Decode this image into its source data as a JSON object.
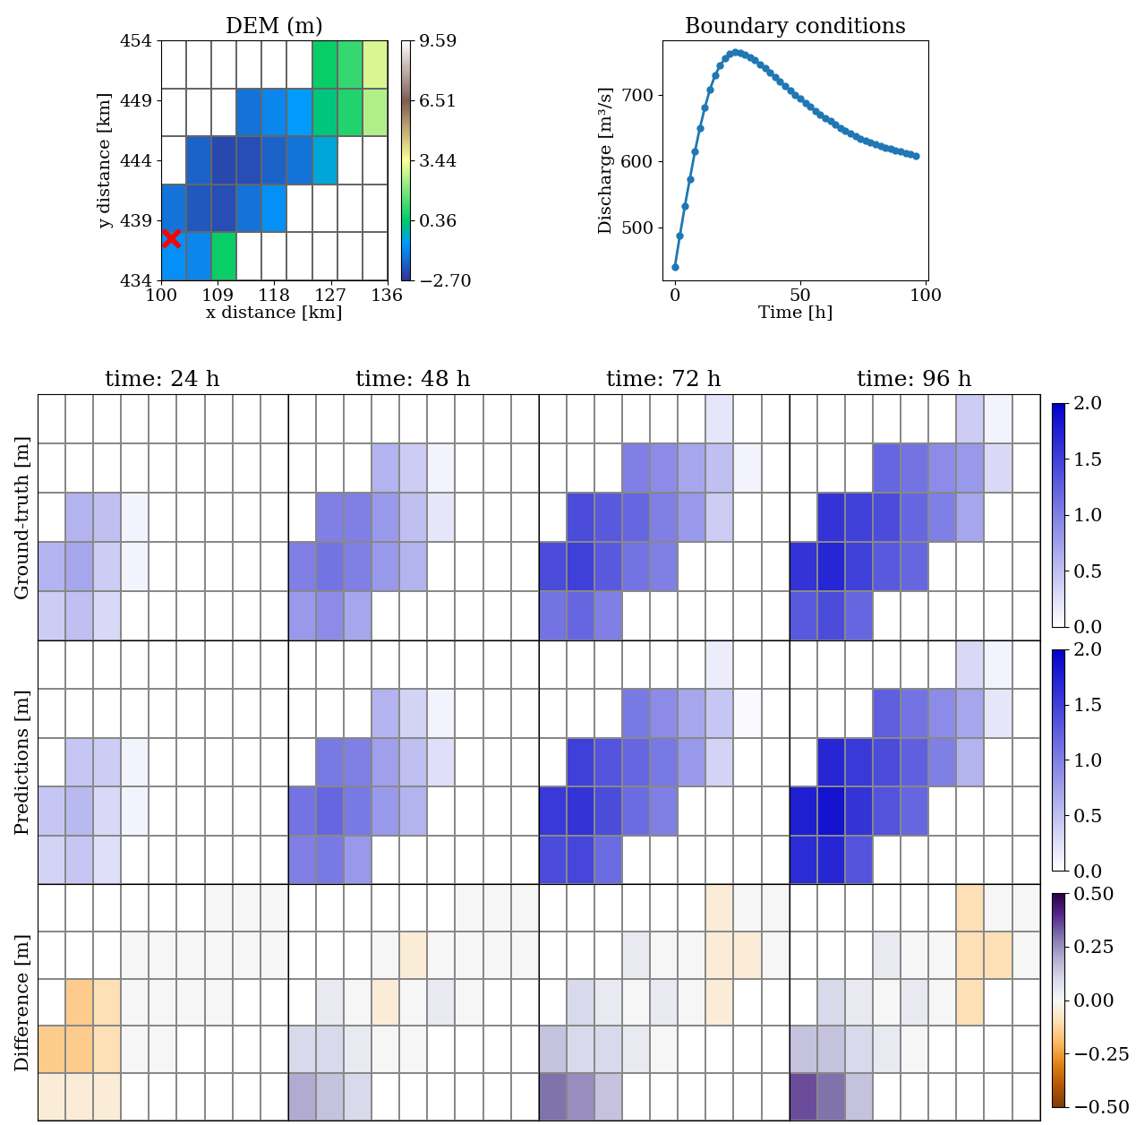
{
  "chart_data": [
    {
      "type": "heatmap",
      "title": "DEM (m)",
      "x_label": "x distance [km]",
      "y_label": "y distance [km]",
      "xlim": [
        100,
        136
      ],
      "xticks": [
        100,
        109,
        118,
        127,
        136
      ],
      "ylim": [
        434,
        454
      ],
      "yticks": [
        434,
        439,
        444,
        449,
        454
      ],
      "x_edges": [
        100,
        104,
        108,
        112,
        116,
        120,
        124,
        128,
        132,
        136
      ],
      "y_edges": [
        434,
        438,
        442,
        446,
        450,
        454
      ],
      "cells": [
        [
          -1.0,
          -1.2,
          0.5,
          null,
          null,
          null,
          null,
          null,
          null
        ],
        [
          -1.5,
          -2.0,
          -2.2,
          -1.5,
          -1.0,
          null,
          null,
          null,
          null
        ],
        [
          null,
          -1.8,
          -2.3,
          -2.2,
          -1.8,
          -1.5,
          -0.5,
          null,
          null
        ],
        [
          null,
          null,
          null,
          -1.5,
          -1.2,
          -0.8,
          0.2,
          0.8,
          2.5
        ],
        [
          null,
          null,
          null,
          null,
          null,
          null,
          0.5,
          1.0,
          3.0
        ]
      ],
      "color_range": [
        -2.7,
        9.59
      ],
      "colorbar_ticks": [
        {
          "value": -2.7,
          "label": "−2.70"
        },
        0.36,
        3.44,
        6.51,
        9.59
      ],
      "outlet": {
        "x": 101.5,
        "y": 437.5,
        "color": "red",
        "marker": "x"
      }
    },
    {
      "type": "line",
      "title": "Boundary conditions",
      "x_label": "Time [h]",
      "y_label": "Discharge [m³/s]",
      "color": "#1f77b4",
      "marker": "o",
      "x": [
        0,
        2,
        4,
        6,
        8,
        10,
        12,
        14,
        16,
        18,
        20,
        22,
        24,
        26,
        28,
        30,
        32,
        34,
        36,
        38,
        40,
        42,
        44,
        46,
        48,
        50,
        52,
        54,
        56,
        58,
        60,
        62,
        64,
        66,
        68,
        70,
        72,
        74,
        76,
        78,
        80,
        82,
        84,
        86,
        88,
        90,
        92,
        94,
        96
      ],
      "values": [
        440,
        487,
        532,
        573,
        614,
        650,
        681,
        708,
        729,
        744,
        755,
        762,
        765,
        764,
        761,
        757,
        752,
        746,
        740,
        734,
        727,
        720,
        713,
        707,
        700,
        694,
        688,
        682,
        676,
        670,
        665,
        660,
        655,
        650,
        646,
        642,
        638,
        634,
        631,
        628,
        625,
        622,
        620,
        618,
        616,
        614,
        612,
        610,
        608
      ],
      "xlim": [
        -5,
        101
      ],
      "xticks": [
        0,
        50,
        100
      ],
      "ylim": [
        420,
        782
      ],
      "yticks": [
        500,
        600,
        700
      ]
    },
    {
      "type": "heatmap",
      "title": "time: 24 h",
      "y_label": "Ground-truth [m]",
      "tick_labels": false,
      "x_edges": [
        100,
        104,
        108,
        112,
        116,
        120,
        124,
        128,
        132,
        136
      ],
      "y_edges": [
        434,
        438,
        442,
        446,
        450,
        454
      ],
      "cells": [
        [
          0.4,
          0.5,
          0.3,
          null,
          null,
          null,
          null,
          null,
          null
        ],
        [
          0.6,
          0.7,
          0.4,
          0.1,
          0.0,
          null,
          null,
          null,
          null
        ],
        [
          null,
          0.6,
          0.5,
          0.1,
          0.0,
          0.0,
          0.0,
          null,
          null
        ],
        [
          null,
          null,
          null,
          0.0,
          0.0,
          0.0,
          0.0,
          0.0,
          0.0
        ],
        [
          null,
          null,
          null,
          null,
          null,
          null,
          0.0,
          0.0,
          0.0
        ]
      ],
      "color_range": [
        0.0,
        2.0
      ]
    },
    {
      "type": "heatmap",
      "title": "time: 48 h",
      "tick_labels": false,
      "x_edges": [
        100,
        104,
        108,
        112,
        116,
        120,
        124,
        128,
        132,
        136
      ],
      "y_edges": [
        434,
        438,
        442,
        446,
        450,
        454
      ],
      "cells": [
        [
          0.8,
          0.9,
          0.7,
          null,
          null,
          null,
          null,
          null,
          null
        ],
        [
          1.0,
          1.1,
          1.0,
          0.8,
          0.6,
          null,
          null,
          null,
          null
        ],
        [
          null,
          1.0,
          1.0,
          0.8,
          0.5,
          0.2,
          0.0,
          null,
          null
        ],
        [
          null,
          null,
          null,
          0.6,
          0.4,
          0.1,
          0.0,
          0.0,
          0.0
        ],
        [
          null,
          null,
          null,
          null,
          null,
          null,
          0.0,
          0.0,
          0.0
        ]
      ],
      "color_range": [
        0.0,
        2.0
      ]
    },
    {
      "type": "heatmap",
      "title": "time: 72 h",
      "tick_labels": false,
      "x_edges": [
        100,
        104,
        108,
        112,
        116,
        120,
        124,
        128,
        132,
        136
      ],
      "y_edges": [
        434,
        438,
        442,
        446,
        450,
        454
      ],
      "cells": [
        [
          1.1,
          1.2,
          1.0,
          null,
          null,
          null,
          null,
          null,
          null
        ],
        [
          1.4,
          1.5,
          1.3,
          1.1,
          1.0,
          null,
          null,
          null,
          null
        ],
        [
          null,
          1.4,
          1.3,
          1.2,
          1.0,
          0.8,
          0.4,
          null,
          null
        ],
        [
          null,
          null,
          null,
          1.0,
          0.9,
          0.7,
          0.5,
          0.1,
          0.0
        ],
        [
          null,
          null,
          null,
          null,
          null,
          null,
          0.2,
          0.0,
          0.0
        ]
      ],
      "color_range": [
        0.0,
        2.0
      ]
    },
    {
      "type": "heatmap",
      "title": "time: 96 h",
      "tick_labels": false,
      "x_edges": [
        100,
        104,
        108,
        112,
        116,
        120,
        124,
        128,
        132,
        136
      ],
      "y_edges": [
        434,
        438,
        442,
        446,
        450,
        454
      ],
      "cells": [
        [
          1.3,
          1.4,
          1.2,
          null,
          null,
          null,
          null,
          null,
          null
        ],
        [
          1.6,
          1.7,
          1.5,
          1.3,
          1.2,
          null,
          null,
          null,
          null
        ],
        [
          null,
          1.6,
          1.5,
          1.4,
          1.2,
          1.0,
          0.7,
          null,
          null
        ],
        [
          null,
          null,
          null,
          1.2,
          1.1,
          0.9,
          0.8,
          0.3,
          0.0
        ],
        [
          null,
          null,
          null,
          null,
          null,
          null,
          0.4,
          0.1,
          0.0
        ]
      ],
      "color_range": [
        0.0,
        2.0
      ],
      "colorbar_ticks": [
        0.0,
        0.5,
        1.0,
        1.5,
        2.0
      ]
    },
    {
      "type": "heatmap",
      "y_label": "Predictions [m]",
      "tick_labels": false,
      "x_edges": [
        100,
        104,
        108,
        112,
        116,
        120,
        124,
        128,
        132,
        136
      ],
      "y_edges": [
        434,
        438,
        442,
        446,
        450,
        454
      ],
      "cells": [
        [
          0.35,
          0.45,
          0.25,
          null,
          null,
          null,
          null,
          null,
          null
        ],
        [
          0.45,
          0.55,
          0.3,
          0.1,
          0.0,
          null,
          null,
          null,
          null
        ],
        [
          null,
          0.45,
          0.4,
          0.1,
          0.0,
          0.0,
          0.0,
          null,
          null
        ],
        [
          null,
          null,
          null,
          0.0,
          0.0,
          0.0,
          0.0,
          0.0,
          0.0
        ],
        [
          null,
          null,
          null,
          null,
          null,
          null,
          0.0,
          0.0,
          0.0
        ]
      ],
      "color_range": [
        0.0,
        2.0
      ]
    },
    {
      "type": "heatmap",
      "tick_labels": false,
      "x_edges": [
        100,
        104,
        108,
        112,
        116,
        120,
        124,
        128,
        132,
        136
      ],
      "y_edges": [
        434,
        438,
        442,
        446,
        450,
        454
      ],
      "cells": [
        [
          1.0,
          1.05,
          0.8,
          null,
          null,
          null,
          null,
          null,
          null
        ],
        [
          1.1,
          1.2,
          1.05,
          0.8,
          0.6,
          null,
          null,
          null,
          null
        ],
        [
          null,
          1.05,
          1.0,
          0.75,
          0.5,
          0.25,
          0.0,
          null,
          null
        ],
        [
          null,
          null,
          null,
          0.6,
          0.35,
          0.1,
          0.0,
          0.0,
          0.0
        ],
        [
          null,
          null,
          null,
          null,
          null,
          null,
          0.0,
          0.0,
          0.0
        ]
      ],
      "color_range": [
        0.0,
        2.0
      ]
    },
    {
      "type": "heatmap",
      "tick_labels": false,
      "x_edges": [
        100,
        104,
        108,
        112,
        116,
        120,
        124,
        128,
        132,
        136
      ],
      "y_edges": [
        434,
        438,
        442,
        446,
        450,
        454
      ],
      "cells": [
        [
          1.4,
          1.45,
          1.15,
          null,
          null,
          null,
          null,
          null,
          null
        ],
        [
          1.55,
          1.6,
          1.4,
          1.15,
          1.0,
          null,
          null,
          null,
          null
        ],
        [
          null,
          1.5,
          1.35,
          1.2,
          1.05,
          0.8,
          0.35,
          null,
          null
        ],
        [
          null,
          null,
          null,
          1.05,
          0.9,
          0.7,
          0.45,
          0.05,
          0.0
        ],
        [
          null,
          null,
          null,
          null,
          null,
          null,
          0.15,
          0.0,
          0.0
        ]
      ],
      "color_range": [
        0.0,
        2.0
      ]
    },
    {
      "type": "heatmap",
      "tick_labels": false,
      "x_edges": [
        100,
        104,
        108,
        112,
        116,
        120,
        124,
        128,
        132,
        136
      ],
      "y_edges": [
        434,
        438,
        442,
        446,
        450,
        454
      ],
      "cells": [
        [
          1.65,
          1.7,
          1.35,
          null,
          null,
          null,
          null,
          null,
          null
        ],
        [
          1.75,
          1.85,
          1.6,
          1.35,
          1.2,
          null,
          null,
          null,
          null
        ],
        [
          null,
          1.7,
          1.55,
          1.4,
          1.25,
          1.0,
          0.6,
          null,
          null
        ],
        [
          null,
          null,
          null,
          1.25,
          1.1,
          0.9,
          0.7,
          0.2,
          0.0
        ],
        [
          null,
          null,
          null,
          null,
          null,
          null,
          0.3,
          0.1,
          0.0
        ]
      ],
      "color_range": [
        0.0,
        2.0
      ],
      "colorbar_ticks": [
        0.0,
        0.5,
        1.0,
        1.5,
        2.0
      ]
    },
    {
      "type": "heatmap",
      "y_label": "Difference [m]",
      "tick_labels": false,
      "x_edges": [
        100,
        104,
        108,
        112,
        116,
        120,
        124,
        128,
        132,
        136
      ],
      "y_edges": [
        434,
        438,
        442,
        446,
        450,
        454
      ],
      "cells": [
        [
          -0.05,
          -0.05,
          -0.05,
          null,
          null,
          null,
          null,
          null,
          null
        ],
        [
          -0.15,
          -0.15,
          -0.1,
          0.0,
          0.0,
          null,
          null,
          null,
          null
        ],
        [
          null,
          -0.15,
          -0.1,
          0.0,
          0.0,
          0.0,
          0.0,
          null,
          null
        ],
        [
          null,
          null,
          null,
          0.0,
          0.0,
          0.0,
          0.0,
          0.0,
          0.0
        ],
        [
          null,
          null,
          null,
          null,
          null,
          null,
          0.0,
          0.0,
          0.0
        ]
      ],
      "color_range": [
        -0.5,
        0.5
      ]
    },
    {
      "type": "heatmap",
      "tick_labels": false,
      "x_edges": [
        100,
        104,
        108,
        112,
        116,
        120,
        124,
        128,
        132,
        136
      ],
      "y_edges": [
        434,
        438,
        442,
        446,
        450,
        454
      ],
      "cells": [
        [
          0.2,
          0.15,
          0.1,
          null,
          null,
          null,
          null,
          null,
          null
        ],
        [
          0.1,
          0.1,
          0.05,
          0.0,
          0.0,
          null,
          null,
          null,
          null
        ],
        [
          null,
          0.05,
          0.0,
          -0.05,
          0.0,
          0.05,
          0.0,
          null,
          null
        ],
        [
          null,
          null,
          null,
          0.0,
          -0.05,
          0.0,
          0.0,
          0.0,
          0.0
        ],
        [
          null,
          null,
          null,
          null,
          null,
          null,
          0.0,
          0.0,
          0.0
        ]
      ],
      "color_range": [
        -0.5,
        0.5
      ]
    },
    {
      "type": "heatmap",
      "tick_labels": false,
      "x_edges": [
        100,
        104,
        108,
        112,
        116,
        120,
        124,
        128,
        132,
        136
      ],
      "y_edges": [
        434,
        438,
        442,
        446,
        450,
        454
      ],
      "cells": [
        [
          0.3,
          0.25,
          0.15,
          null,
          null,
          null,
          null,
          null,
          null
        ],
        [
          0.15,
          0.1,
          0.1,
          0.05,
          0.0,
          null,
          null,
          null,
          null
        ],
        [
          null,
          0.1,
          0.05,
          0.0,
          0.05,
          0.0,
          -0.05,
          null,
          null
        ],
        [
          null,
          null,
          null,
          0.05,
          0.0,
          0.0,
          -0.05,
          -0.05,
          0.0
        ],
        [
          null,
          null,
          null,
          null,
          null,
          null,
          -0.05,
          0.0,
          0.0
        ]
      ],
      "color_range": [
        -0.5,
        0.5
      ]
    },
    {
      "type": "heatmap",
      "tick_labels": false,
      "x_edges": [
        100,
        104,
        108,
        112,
        116,
        120,
        124,
        128,
        132,
        136
      ],
      "y_edges": [
        434,
        438,
        442,
        446,
        450,
        454
      ],
      "cells": [
        [
          0.35,
          0.3,
          0.15,
          null,
          null,
          null,
          null,
          null,
          null
        ],
        [
          0.15,
          0.15,
          0.1,
          0.05,
          0.0,
          null,
          null,
          null,
          null
        ],
        [
          null,
          0.1,
          0.05,
          0.0,
          0.05,
          0.0,
          -0.1,
          null,
          null
        ],
        [
          null,
          null,
          null,
          0.05,
          0.0,
          0.0,
          -0.1,
          -0.1,
          0.0
        ],
        [
          null,
          null,
          null,
          null,
          null,
          null,
          -0.1,
          0.0,
          0.0
        ]
      ],
      "color_range": [
        -0.5,
        0.5
      ],
      "colorbar_ticks": [
        {
          "value": -0.5,
          "label": "−0.50"
        },
        {
          "value": -0.25,
          "label": "−0.25"
        },
        {
          "value": 0.0,
          "label": "0.00"
        },
        0.25,
        {
          "value": 0.5,
          "label": "0.50"
        }
      ]
    }
  ]
}
